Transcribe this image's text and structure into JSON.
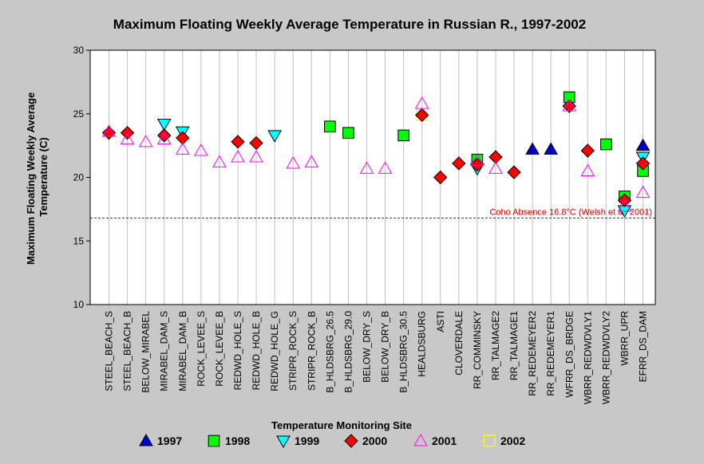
{
  "chart_data": {
    "type": "scatter",
    "title": "Maximum Floating Weekly Average Temperature in Russian R., 1997-2002",
    "xlabel": "Temperature Monitoring Site",
    "ylabel": "Maximum Floating Weekly Average Temperature (C)",
    "ylim": [
      10,
      30
    ],
    "yticks": [
      10,
      15,
      20,
      25,
      30
    ],
    "grid": "vertical",
    "legend_position": "bottom",
    "categories": [
      "STEEL_BEACH_S",
      "STEEL_BEACH_B",
      "BELOW_MIRABEL",
      "MIRABEL_DAM_S",
      "MIRABEL_DAM_B",
      "ROCK_LEVEE_S",
      "ROCK_LEVEE_B",
      "REDWD_HOLE_S",
      "REDWD_HOLE_B",
      "REDWD_HOLE_G",
      "STRIPR_ROCK_S",
      "STRIPR_ROCK_B",
      "B_HLDSBRG_26.5",
      "B_HLDSBRG_29.0",
      "BELOW_DRY_S",
      "BELOW_DRY_B",
      "B_HLDSBRG_30.5",
      "HEALDSBURG",
      "ASTI",
      "CLOVERDALE",
      "RR_COMMINSKY",
      "RR_TALMAGE2",
      "RR_TALMAGE1",
      "RR_REDEMEYER2",
      "RR_REDEMEYER1",
      "WFRR_DS_BRDGE",
      "WBRR_REDWDVLY1",
      "WBRR_REDWDVLY2",
      "WBRR_UPR",
      "EFRR_DS_DAM"
    ],
    "series": [
      {
        "name": "1997",
        "marker": "triangle-up",
        "color": "#0000cc",
        "values": [
          null,
          null,
          null,
          null,
          null,
          null,
          null,
          null,
          null,
          null,
          null,
          null,
          null,
          null,
          null,
          null,
          null,
          null,
          null,
          null,
          null,
          null,
          null,
          22.2,
          22.2,
          null,
          null,
          null,
          null,
          22.5
        ]
      },
      {
        "name": "1998",
        "marker": "square",
        "color": "#00ff00",
        "values": [
          null,
          null,
          null,
          null,
          null,
          null,
          null,
          null,
          null,
          null,
          null,
          null,
          24.0,
          23.5,
          null,
          null,
          23.3,
          null,
          null,
          null,
          21.4,
          null,
          null,
          null,
          null,
          26.3,
          null,
          22.6,
          18.5,
          20.5
        ]
      },
      {
        "name": "1999",
        "marker": "triangle-down",
        "color": "#00ffff",
        "values": [
          null,
          null,
          null,
          24.2,
          23.6,
          null,
          null,
          null,
          null,
          23.3,
          null,
          null,
          null,
          null,
          null,
          null,
          null,
          null,
          null,
          null,
          20.7,
          null,
          null,
          null,
          null,
          null,
          null,
          null,
          17.4,
          21.6
        ]
      },
      {
        "name": "2000",
        "marker": "diamond",
        "color": "#ff0000",
        "values": [
          23.5,
          23.5,
          null,
          23.3,
          23.1,
          null,
          null,
          22.8,
          22.7,
          null,
          null,
          null,
          null,
          null,
          null,
          null,
          null,
          24.9,
          20.0,
          21.1,
          21.0,
          21.6,
          20.4,
          null,
          null,
          25.6,
          22.1,
          null,
          18.2,
          21.1
        ]
      },
      {
        "name": "2001",
        "marker": "triangle-up-open",
        "color": "#ff00ff",
        "values": [
          23.6,
          23.0,
          22.8,
          23.0,
          22.2,
          22.1,
          21.2,
          21.6,
          21.6,
          null,
          21.1,
          21.2,
          null,
          null,
          20.7,
          20.7,
          null,
          25.8,
          null,
          null,
          21.3,
          20.7,
          null,
          null,
          null,
          25.6,
          20.5,
          null,
          17.7,
          18.8
        ]
      },
      {
        "name": "2002",
        "marker": "square-open",
        "color": "#ffff00",
        "values": [
          null,
          null,
          null,
          null,
          null,
          null,
          null,
          null,
          null,
          null,
          null,
          null,
          null,
          null,
          null,
          null,
          null,
          24.9,
          null,
          null,
          null,
          null,
          null,
          null,
          null,
          null,
          null,
          null,
          null,
          null
        ]
      }
    ],
    "annotations": [
      {
        "text": "Coho Absence 16.8°C (Welsh et al. 2001)",
        "y": 16.8,
        "color": "#d00000",
        "style": "dashed"
      }
    ]
  }
}
